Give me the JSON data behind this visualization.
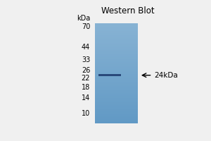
{
  "title": "Western Blot",
  "kda_label": "kDa",
  "marker_labels": [
    "70",
    "44",
    "33",
    "26",
    "22",
    "18",
    "14",
    "10"
  ],
  "marker_positions": [
    70,
    44,
    33,
    26,
    22,
    18,
    14,
    10
  ],
  "band_kda": 23.5,
  "band_color": "#2a4a7a",
  "gel_color_top": "#6b9fc8",
  "gel_color_bottom": "#8fbedd",
  "background_color": "#f0f0f0",
  "title_fontsize": 8.5,
  "tick_fontsize": 7,
  "kda_max": 75,
  "kda_min": 8
}
